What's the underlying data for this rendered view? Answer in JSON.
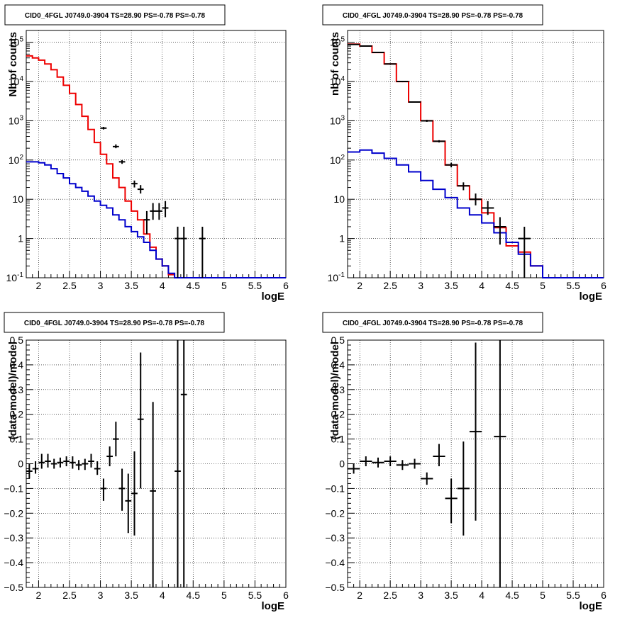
{
  "chart_data": [
    {
      "type": "line",
      "title": "CID0_4FGL J0749.0-3904 TS=28.90 PS=-0.78 PS=-0.78",
      "xlabel": "logE",
      "ylabel": "Nb of counts",
      "xlim": [
        1.8,
        6.0
      ],
      "ylim": [
        0.1,
        200000
      ],
      "yscale": "log",
      "grid": true,
      "x_ticks": [
        "2",
        "2.5",
        "3",
        "3.5",
        "4",
        "4.5",
        "5",
        "5.5",
        "6"
      ],
      "y_ticks": [
        "10^-1",
        "1",
        "10",
        "10^2",
        "10^3",
        "10^4",
        "10^5"
      ],
      "bin_edges": [
        1.8,
        1.9,
        2.0,
        2.1,
        2.2,
        2.3,
        2.4,
        2.5,
        2.6,
        2.7,
        2.8,
        2.9,
        3.0,
        3.1,
        3.2,
        3.3,
        3.4,
        3.5,
        3.6,
        3.7,
        3.8,
        3.9,
        4.0,
        4.1,
        4.2,
        4.3,
        4.4,
        4.5,
        4.6,
        4.7,
        4.8,
        4.9,
        5.0,
        5.1,
        5.2,
        5.3,
        5.4,
        5.5,
        5.6,
        5.7,
        5.8,
        5.9,
        6.0
      ],
      "series": [
        {
          "color": "#ee0000",
          "style": "step",
          "values": [
            45000,
            40000,
            35000,
            28000,
            20000,
            13000,
            8000,
            5000,
            2600,
            1300,
            600,
            280,
            140,
            80,
            35,
            20,
            9,
            5,
            3,
            1.3,
            0.6,
            0.3,
            0.2,
            0.12,
            0.1,
            0.1,
            0.1,
            0.1,
            0.1,
            0.1,
            0.1,
            0.1,
            0.1,
            0.1,
            0.1,
            0.1,
            0.1,
            0.1,
            0.1,
            0.1,
            0.1,
            0.1
          ]
        },
        {
          "color": "#0000cc",
          "style": "step",
          "values": [
            90,
            90,
            85,
            75,
            60,
            45,
            35,
            25,
            20,
            16,
            12,
            9,
            7,
            6,
            4,
            3,
            2,
            1.5,
            1.1,
            0.8,
            0.5,
            0.3,
            0.2,
            0.13,
            0.1,
            0.1,
            0.1,
            0.1,
            0.1,
            0.1,
            0.1,
            0.1,
            0.1,
            0.1,
            0.1,
            0.1,
            0.1,
            0.1,
            0.1,
            0.1,
            0.1,
            0.1
          ]
        }
      ],
      "data_points": [
        {
          "x": 3.05,
          "xerr": 0.05,
          "y": 650,
          "ylo": 600,
          "yhi": 700
        },
        {
          "x": 3.25,
          "xerr": 0.05,
          "y": 220,
          "ylo": 200,
          "yhi": 250
        },
        {
          "x": 3.35,
          "xerr": 0.05,
          "y": 90,
          "ylo": 80,
          "yhi": 100
        },
        {
          "x": 3.55,
          "xerr": 0.05,
          "y": 25,
          "ylo": 20,
          "yhi": 30
        },
        {
          "x": 3.65,
          "xerr": 0.05,
          "y": 18,
          "ylo": 14,
          "yhi": 23
        },
        {
          "x": 3.75,
          "xerr": 0.05,
          "y": 3,
          "ylo": 1.3,
          "yhi": 5
        },
        {
          "x": 3.85,
          "xerr": 0.05,
          "y": 5,
          "ylo": 3,
          "yhi": 8
        },
        {
          "x": 3.95,
          "xerr": 0.05,
          "y": 5,
          "ylo": 3,
          "yhi": 8
        },
        {
          "x": 4.05,
          "xerr": 0.05,
          "y": 6,
          "ylo": 3.5,
          "yhi": 9
        },
        {
          "x": 4.25,
          "xerr": 0.05,
          "y": 1,
          "ylo": 0.1,
          "yhi": 2
        },
        {
          "x": 4.35,
          "xerr": 0.05,
          "y": 1,
          "ylo": 0.1,
          "yhi": 2
        },
        {
          "x": 4.65,
          "xerr": 0.05,
          "y": 1,
          "ylo": 0.1,
          "yhi": 2
        }
      ]
    },
    {
      "type": "line",
      "title": "CID0_4FGL J0749.0-3904 TS=28.90 PS=-0.78 PS=-0.78",
      "xlabel": "logE",
      "ylabel": "nb of counts",
      "xlim": [
        1.8,
        6.0
      ],
      "ylim": [
        0.1,
        200000
      ],
      "yscale": "log",
      "grid": true,
      "x_ticks": [
        "2",
        "2.5",
        "3",
        "3.5",
        "4",
        "4.5",
        "5",
        "5.5",
        "6"
      ],
      "y_ticks": [
        "10^-1",
        "1",
        "10",
        "10^2",
        "10^3",
        "10^4",
        "10^5"
      ],
      "bin_edges": [
        1.8,
        2.0,
        2.2,
        2.4,
        2.6,
        2.8,
        3.0,
        3.2,
        3.4,
        3.6,
        3.8,
        4.0,
        4.2,
        4.4,
        4.6,
        4.8,
        5.0,
        5.2,
        5.4,
        5.6,
        5.8,
        6.0
      ],
      "series": [
        {
          "color": "#ee0000",
          "style": "step",
          "values": [
            90000,
            80000,
            55000,
            28000,
            10000,
            3000,
            1000,
            300,
            75,
            22,
            10,
            4.5,
            1.9,
            0.65,
            0.45,
            0.2,
            0.1,
            0.1,
            0.1,
            0.1,
            0.1
          ]
        },
        {
          "color": "#0000cc",
          "style": "step",
          "values": [
            160,
            180,
            150,
            110,
            75,
            50,
            30,
            18,
            11,
            6,
            4,
            2.5,
            1.4,
            0.8,
            0.4,
            0.2,
            0.1,
            0.1,
            0.1,
            0.1,
            0.1
          ]
        }
      ],
      "data_points": [
        {
          "x": 1.9,
          "xerr": 0.1,
          "y": 88000,
          "ylo": 86000,
          "yhi": 90000
        },
        {
          "x": 2.1,
          "xerr": 0.1,
          "y": 80000,
          "ylo": 78000,
          "yhi": 82000
        },
        {
          "x": 2.3,
          "xerr": 0.1,
          "y": 55000,
          "ylo": 53000,
          "yhi": 57000
        },
        {
          "x": 2.5,
          "xerr": 0.1,
          "y": 28000,
          "ylo": 27000,
          "yhi": 29000
        },
        {
          "x": 2.7,
          "xerr": 0.1,
          "y": 10000,
          "ylo": 9600,
          "yhi": 10400
        },
        {
          "x": 2.9,
          "xerr": 0.1,
          "y": 3000,
          "ylo": 2900,
          "yhi": 3100
        },
        {
          "x": 3.1,
          "xerr": 0.1,
          "y": 1000,
          "ylo": 940,
          "yhi": 1060
        },
        {
          "x": 3.3,
          "xerr": 0.1,
          "y": 300,
          "ylo": 280,
          "yhi": 320
        },
        {
          "x": 3.5,
          "xerr": 0.1,
          "y": 75,
          "ylo": 65,
          "yhi": 85
        },
        {
          "x": 3.7,
          "xerr": 0.1,
          "y": 22,
          "ylo": 17,
          "yhi": 27
        },
        {
          "x": 3.9,
          "xerr": 0.1,
          "y": 10,
          "ylo": 7,
          "yhi": 14
        },
        {
          "x": 4.1,
          "xerr": 0.1,
          "y": 6,
          "ylo": 4,
          "yhi": 9
        },
        {
          "x": 4.3,
          "xerr": 0.1,
          "y": 2,
          "ylo": 0.7,
          "yhi": 3.5
        },
        {
          "x": 4.7,
          "xerr": 0.1,
          "y": 1,
          "ylo": 0.1,
          "yhi": 2
        }
      ]
    },
    {
      "type": "scatter",
      "title": "CID0_4FGL J0749.0-3904 TS=28.90 PS=-0.78 PS=-0.78",
      "xlabel": "logE",
      "ylabel": "(data-model)/model",
      "xlim": [
        1.8,
        6.0
      ],
      "ylim": [
        -0.5,
        0.5
      ],
      "grid": true,
      "x_ticks": [
        "2",
        "2.5",
        "3",
        "3.5",
        "4",
        "4.5",
        "5",
        "5.5",
        "6"
      ],
      "y_ticks": [
        "−0.5",
        "−0.4",
        "−0.3",
        "−0.2",
        "−0.1",
        "0",
        "0.1",
        "0.2",
        "0.3",
        "0.4",
        "0.5"
      ],
      "data_points": [
        {
          "x": 1.85,
          "xerr": 0.05,
          "y": -0.03,
          "ylo": -0.06,
          "yhi": 0.0
        },
        {
          "x": 1.95,
          "xerr": 0.05,
          "y": -0.02,
          "ylo": -0.04,
          "yhi": 0.01
        },
        {
          "x": 2.05,
          "xerr": 0.05,
          "y": 0.005,
          "ylo": -0.02,
          "yhi": 0.04
        },
        {
          "x": 2.15,
          "xerr": 0.05,
          "y": 0.01,
          "ylo": -0.015,
          "yhi": 0.04
        },
        {
          "x": 2.25,
          "xerr": 0.05,
          "y": 0.0,
          "ylo": -0.02,
          "yhi": 0.02
        },
        {
          "x": 2.35,
          "xerr": 0.05,
          "y": 0.005,
          "ylo": -0.015,
          "yhi": 0.025
        },
        {
          "x": 2.45,
          "xerr": 0.05,
          "y": 0.01,
          "ylo": -0.01,
          "yhi": 0.03
        },
        {
          "x": 2.55,
          "xerr": 0.05,
          "y": 0.005,
          "ylo": -0.02,
          "yhi": 0.03
        },
        {
          "x": 2.65,
          "xerr": 0.05,
          "y": -0.005,
          "ylo": -0.025,
          "yhi": 0.015
        },
        {
          "x": 2.75,
          "xerr": 0.05,
          "y": 0.0,
          "ylo": -0.025,
          "yhi": 0.02
        },
        {
          "x": 2.85,
          "xerr": 0.05,
          "y": 0.01,
          "ylo": -0.015,
          "yhi": 0.04
        },
        {
          "x": 2.95,
          "xerr": 0.05,
          "y": -0.02,
          "ylo": -0.045,
          "yhi": 0.01
        },
        {
          "x": 3.05,
          "xerr": 0.05,
          "y": -0.1,
          "ylo": -0.15,
          "yhi": -0.06
        },
        {
          "x": 3.15,
          "xerr": 0.05,
          "y": 0.03,
          "ylo": -0.01,
          "yhi": 0.07
        },
        {
          "x": 3.25,
          "xerr": 0.05,
          "y": 0.1,
          "ylo": 0.03,
          "yhi": 0.17
        },
        {
          "x": 3.35,
          "xerr": 0.05,
          "y": -0.1,
          "ylo": -0.19,
          "yhi": -0.02
        },
        {
          "x": 3.45,
          "xerr": 0.05,
          "y": -0.15,
          "ylo": -0.28,
          "yhi": -0.04
        },
        {
          "x": 3.55,
          "xerr": 0.05,
          "y": -0.12,
          "ylo": -0.29,
          "yhi": 0.05
        },
        {
          "x": 3.65,
          "xerr": 0.05,
          "y": 0.18,
          "ylo": -0.1,
          "yhi": 0.45
        },
        {
          "x": 3.85,
          "xerr": 0.05,
          "y": -0.11,
          "ylo": -0.5,
          "yhi": 0.25
        },
        {
          "x": 4.25,
          "xerr": 0.05,
          "y": -0.03,
          "ylo": -0.5,
          "yhi": 0.5
        },
        {
          "x": 4.35,
          "xerr": 0.05,
          "y": 0.28,
          "ylo": -0.5,
          "yhi": 0.5
        }
      ]
    },
    {
      "type": "scatter",
      "title": "CID0_4FGL J0749.0-3904 TS=28.90 PS=-0.78 PS=-0.78",
      "xlabel": "logE",
      "ylabel": "(data-model)/model",
      "xlim": [
        1.8,
        6.0
      ],
      "ylim": [
        -0.5,
        0.5
      ],
      "grid": true,
      "x_ticks": [
        "2",
        "2.5",
        "3",
        "3.5",
        "4",
        "4.5",
        "5",
        "5.5",
        "6"
      ],
      "y_ticks": [
        "−0.5",
        "−0.4",
        "−0.3",
        "−0.2",
        "−0.1",
        "0",
        "0.1",
        "0.2",
        "0.3",
        "0.4",
        "0.5"
      ],
      "data_points": [
        {
          "x": 1.9,
          "xerr": 0.1,
          "y": -0.02,
          "ylo": -0.04,
          "yhi": 0.0
        },
        {
          "x": 2.1,
          "xerr": 0.1,
          "y": 0.01,
          "ylo": -0.01,
          "yhi": 0.03
        },
        {
          "x": 2.3,
          "xerr": 0.1,
          "y": 0.005,
          "ylo": -0.015,
          "yhi": 0.025
        },
        {
          "x": 2.5,
          "xerr": 0.1,
          "y": 0.01,
          "ylo": -0.01,
          "yhi": 0.03
        },
        {
          "x": 2.7,
          "xerr": 0.1,
          "y": -0.005,
          "ylo": -0.025,
          "yhi": 0.015
        },
        {
          "x": 2.9,
          "xerr": 0.1,
          "y": 0.0,
          "ylo": -0.02,
          "yhi": 0.02
        },
        {
          "x": 3.1,
          "xerr": 0.1,
          "y": -0.06,
          "ylo": -0.085,
          "yhi": -0.035
        },
        {
          "x": 3.3,
          "xerr": 0.1,
          "y": 0.03,
          "ylo": -0.01,
          "yhi": 0.08
        },
        {
          "x": 3.5,
          "xerr": 0.1,
          "y": -0.14,
          "ylo": -0.24,
          "yhi": -0.06
        },
        {
          "x": 3.7,
          "xerr": 0.1,
          "y": -0.1,
          "ylo": -0.29,
          "yhi": 0.09
        },
        {
          "x": 3.9,
          "xerr": 0.1,
          "y": 0.13,
          "ylo": -0.23,
          "yhi": 0.49
        },
        {
          "x": 4.3,
          "xerr": 0.1,
          "y": 0.11,
          "ylo": -0.5,
          "yhi": 0.5
        }
      ]
    }
  ]
}
